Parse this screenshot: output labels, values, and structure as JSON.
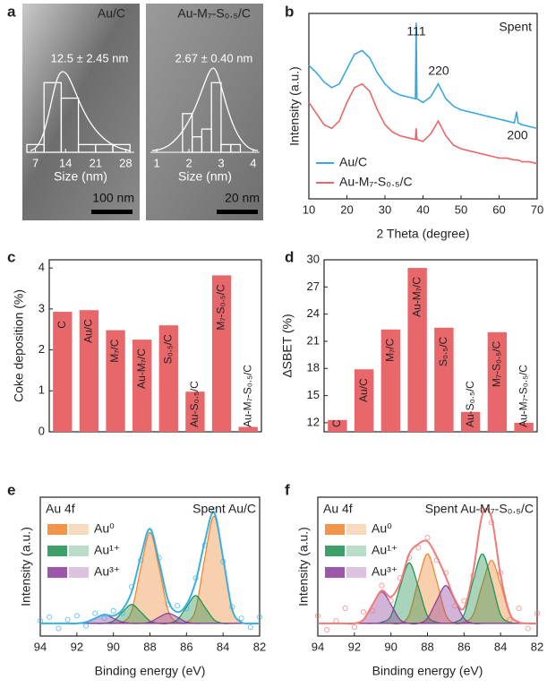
{
  "chart_data": [
    {
      "type": "histogram",
      "panel": "a",
      "title": "Au/C",
      "annotation": "12.5 ± 2.45 nm",
      "xlabel": "Size (nm)",
      "scale_bar": "100 nm",
      "bins": [
        5,
        9,
        13,
        17,
        21,
        25,
        29
      ],
      "values": [
        1,
        9,
        7,
        1,
        1,
        1
      ],
      "xlim": [
        5,
        30
      ],
      "ylim": [
        0,
        11
      ],
      "xticks": [
        7,
        14,
        21,
        28
      ],
      "color": "#ffffff"
    },
    {
      "type": "histogram",
      "title": "Au-M₇-S₀.₅/C",
      "annotation": "2.67 ± 0.40 nm",
      "xlabel": "Size (nm)",
      "scale_bar": "20 nm",
      "bins": [
        1.8,
        2.1,
        2.4,
        2.7,
        3.0,
        3.3,
        3.6
      ],
      "values": [
        5,
        2,
        3,
        9,
        1,
        1
      ],
      "xlim": [
        0.8,
        4.2
      ],
      "ylim": [
        0,
        11
      ],
      "xticks": [
        1,
        2,
        3,
        4
      ],
      "color": "#ffffff"
    },
    {
      "type": "line",
      "panel": "b",
      "xlabel": "2 Theta (degree)",
      "ylabel": "Intensity (a.u.)",
      "annotation": "Spent",
      "peak_labels": [
        "111",
        "220",
        "200"
      ],
      "x": [
        10,
        12,
        14,
        16,
        18,
        20,
        22,
        24,
        26,
        28,
        30,
        32,
        34,
        36,
        38,
        38.2,
        38.4,
        40,
        42,
        44,
        46,
        48,
        50,
        52,
        54,
        56,
        58,
        60,
        62,
        64,
        64.6,
        65,
        66,
        68,
        70
      ],
      "series": [
        {
          "name": "Au/C",
          "color": "#3aa8dc",
          "values": [
            72,
            68,
            63,
            60,
            62,
            70,
            78,
            80,
            76,
            68,
            62,
            58,
            56,
            55,
            54,
            95,
            54,
            52,
            55,
            62,
            54,
            50,
            48,
            47,
            46,
            45,
            44,
            43,
            42,
            41,
            47,
            41,
            40,
            39,
            38
          ]
        },
        {
          "name": "Au-M₇-S₀.₅/C",
          "color": "#e8676a",
          "values": [
            52,
            46,
            40,
            38,
            42,
            52,
            60,
            62,
            58,
            48,
            40,
            36,
            34,
            33,
            32,
            38,
            32,
            31,
            35,
            42,
            34,
            29,
            27,
            26,
            25,
            24,
            23,
            22,
            22,
            21,
            21,
            21,
            20,
            20,
            19
          ]
        }
      ],
      "xlim": [
        10,
        70
      ],
      "ylim": [
        0,
        100
      ],
      "xticks": [
        10,
        20,
        30,
        40,
        50,
        60,
        70
      ]
    },
    {
      "type": "bar",
      "panel": "c",
      "ylabel": "Coke deposition (%)",
      "categories": [
        "C",
        "Au/C",
        "M₇/C",
        "Au-M₇/C",
        "S₀.₅/C",
        "Au-S₀.₅/C",
        "M₇-S₀.₅/C",
        "Au-M₇-S₀.₅/C"
      ],
      "values": [
        2.93,
        2.97,
        2.48,
        2.25,
        2.6,
        0.98,
        3.82,
        0.12
      ],
      "color": "#e8676a",
      "ylim": [
        0,
        4.2
      ],
      "yticks": [
        0,
        1,
        2,
        3,
        4
      ]
    },
    {
      "type": "bar",
      "panel": "d",
      "ylabel": "ΔSBET (%)",
      "categories": [
        "C",
        "Au/C",
        "M₇/C",
        "Au-M₇/C",
        "S₀.₅/C",
        "Au-S₀.₅/C",
        "M₇-S₀.₅/C",
        "Au-M₇-S₀.₅/C"
      ],
      "values": [
        12.3,
        17.9,
        22.3,
        29.1,
        22.5,
        13.2,
        22.0,
        12.0
      ],
      "color": "#e8676a",
      "ylim": [
        11,
        30
      ],
      "yticks": [
        12,
        15,
        18,
        21,
        24,
        27,
        30
      ]
    },
    {
      "type": "area",
      "panel": "e",
      "title": "Au 4f",
      "annotation": "Spent Au/C",
      "xlabel": "Binding energy (eV)",
      "ylabel": "Intensity (a.u.)",
      "x": [
        82,
        82.5,
        83,
        83.5,
        84,
        84.5,
        85,
        85.5,
        86,
        86.5,
        87,
        87.5,
        88,
        88.5,
        89,
        89.5,
        90,
        90.5,
        91,
        91.5,
        92,
        92.5,
        93,
        93.5,
        94
      ],
      "series": [
        {
          "name": "Au⁰",
          "color": "#f0832a",
          "values": [
            0,
            0,
            1,
            11,
            52,
            85,
            52,
            11,
            1,
            1,
            10,
            44,
            72,
            44,
            10,
            1,
            0,
            0,
            0,
            0,
            0,
            0,
            0,
            0,
            0
          ]
        },
        {
          "name": "Au¹⁺",
          "color": "#1a8f4f",
          "values": [
            0,
            0,
            0,
            0,
            0,
            3,
            13,
            22,
            13,
            3,
            0,
            0,
            2,
            9,
            15,
            9,
            2,
            0,
            0,
            0,
            0,
            0,
            0,
            0,
            0
          ]
        },
        {
          "name": "Au³⁺",
          "color": "#8c3a9b",
          "values": [
            0,
            0,
            0,
            0,
            0,
            0,
            0,
            0,
            1,
            5,
            8,
            5,
            1,
            0,
            0,
            1,
            4,
            7,
            4,
            1,
            0,
            0,
            0,
            0,
            0
          ]
        }
      ],
      "fit": {
        "color": "#3ab0e0",
        "values": [
          0,
          0,
          1,
          11,
          52,
          88,
          65,
          33,
          15,
          9,
          18,
          49,
          75,
          53,
          25,
          11,
          6,
          7,
          4,
          1,
          0,
          0,
          0,
          0,
          0
        ]
      },
      "raw": {
        "color": "#3ab0e0",
        "values": [
          5,
          -3,
          4,
          13,
          49,
          90,
          62,
          36,
          12,
          14,
          15,
          52,
          73,
          50,
          29,
          8,
          10,
          4,
          8,
          -2,
          6,
          3,
          -4,
          5,
          2
        ]
      },
      "xlim": [
        94,
        82
      ],
      "ylim": [
        -10,
        100
      ],
      "xticks": [
        94,
        92,
        90,
        88,
        86,
        84,
        82
      ]
    },
    {
      "type": "area",
      "panel": "f",
      "title": "Au 4f",
      "annotation": "Spent Au-M₇-S₀.₅/C",
      "xlabel": "Binding energy (eV)",
      "ylabel": "Intensity (a.u.)",
      "x": [
        82,
        82.5,
        83,
        83.5,
        84,
        84.5,
        85,
        85.5,
        86,
        86.5,
        87,
        87.5,
        88,
        88.5,
        89,
        89.5,
        90,
        90.5,
        91,
        91.5,
        92,
        92.5,
        93,
        93.5,
        94
      ],
      "series": [
        {
          "name": "Au⁰",
          "color": "#f0832a",
          "values": [
            0,
            0,
            1,
            7,
            31,
            50,
            31,
            7,
            1,
            0,
            7,
            34,
            55,
            34,
            7,
            0,
            0,
            0,
            0,
            0,
            0,
            0,
            0,
            0,
            0
          ]
        },
        {
          "name": "Au¹⁺",
          "color": "#1a8f4f",
          "values": [
            0,
            0,
            0,
            1,
            7,
            34,
            55,
            34,
            7,
            1,
            0,
            1,
            6,
            29,
            48,
            29,
            6,
            1,
            0,
            0,
            0,
            0,
            0,
            0,
            0
          ]
        },
        {
          "name": "Au³⁺",
          "color": "#8c3a9b",
          "values": [
            0,
            0,
            0,
            0,
            0,
            0,
            0,
            0,
            4,
            18,
            30,
            18,
            4,
            0,
            0,
            3,
            15,
            25,
            15,
            3,
            0,
            0,
            0,
            0,
            0
          ]
        }
      ],
      "fit": {
        "color": "#ee7b7b",
        "values": [
          0,
          0,
          1,
          8,
          38,
          84,
          86,
          41,
          12,
          19,
          37,
          53,
          65,
          63,
          55,
          32,
          21,
          26,
          15,
          3,
          0,
          0,
          0,
          0,
          0
        ]
      },
      "raw": {
        "color": "#ee7b7b",
        "values": [
          8,
          -4,
          12,
          3,
          40,
          80,
          90,
          38,
          18,
          14,
          40,
          50,
          68,
          60,
          52,
          36,
          18,
          30,
          10,
          9,
          -3,
          12,
          2,
          -5,
          6
        ]
      },
      "xlim": [
        94,
        82
      ],
      "ylim": [
        -10,
        100
      ],
      "xticks": [
        94,
        92,
        90,
        88,
        86,
        84,
        82
      ]
    }
  ]
}
